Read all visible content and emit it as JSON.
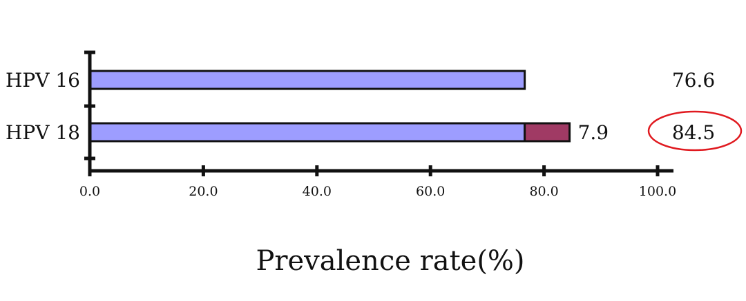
{
  "chart_data": {
    "type": "bar",
    "orientation": "horizontal",
    "stacked": true,
    "categories": [
      "HPV 16",
      "HPV 18"
    ],
    "series": [
      {
        "values": [
          76.6,
          76.6
        ],
        "color": "#9d9dff"
      },
      {
        "values": [
          0,
          7.9
        ],
        "color": "#a03a64"
      }
    ],
    "segment_labels": [
      {
        "category": "HPV 18",
        "series_index": 1,
        "text": "7.9"
      }
    ],
    "totals": [
      {
        "category": "HPV 16",
        "text": "76.6",
        "highlighted": false
      },
      {
        "category": "HPV 18",
        "text": "84.5",
        "highlighted": true
      }
    ],
    "highlight_color": "#e0191f",
    "xlim": [
      0,
      100
    ],
    "xticks": [
      "0.0",
      "20.0",
      "40.0",
      "60.0",
      "80.0",
      "100.0"
    ],
    "xlabel": "Prevalence rate(%)",
    "title": "",
    "grid": false,
    "legend": "none"
  }
}
